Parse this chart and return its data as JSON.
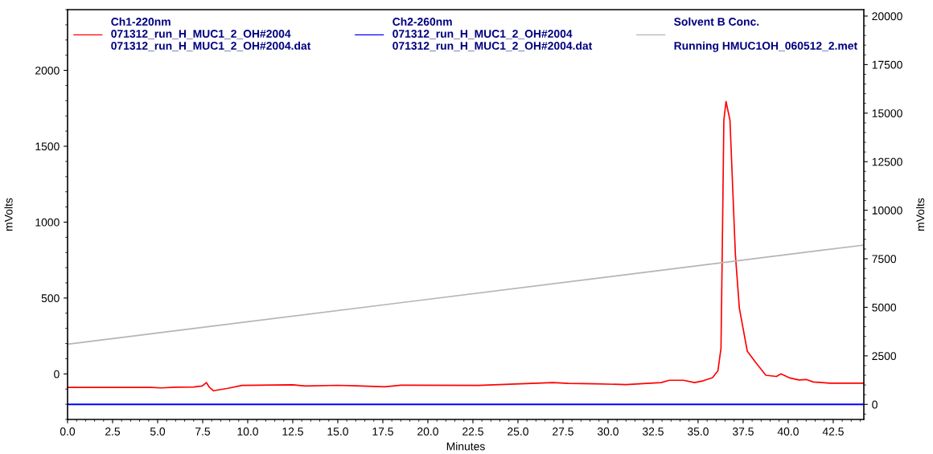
{
  "chart_data": {
    "type": "line",
    "xlabel": "Minutes",
    "ylabel": "mVolts",
    "y2label": "mVolts",
    "xlim": [
      0,
      44.2
    ],
    "xticks": [
      {
        "value": 0,
        "label": "0.0"
      },
      {
        "value": 2.5,
        "label": "2.5"
      },
      {
        "value": 5,
        "label": "5.0"
      },
      {
        "value": 7.5,
        "label": "7.5"
      },
      {
        "value": 10,
        "label": "10.0"
      },
      {
        "value": 12.5,
        "label": "12.5"
      },
      {
        "value": 15,
        "label": "15.0"
      },
      {
        "value": 17.5,
        "label": "17.5"
      },
      {
        "value": 20,
        "label": "20.0"
      },
      {
        "value": 22.5,
        "label": "22.5"
      },
      {
        "value": 25,
        "label": "25.0"
      },
      {
        "value": 27.5,
        "label": "27.5"
      },
      {
        "value": 30,
        "label": "30.0"
      },
      {
        "value": 32.5,
        "label": "32.5"
      },
      {
        "value": 35,
        "label": "35.0"
      },
      {
        "value": 37.5,
        "label": "37.5"
      },
      {
        "value": 40,
        "label": "40.0"
      },
      {
        "value": 42.5,
        "label": "42.5"
      }
    ],
    "ylim": [
      -300,
      2400
    ],
    "yticks": [
      0,
      500,
      1000,
      1500,
      2000
    ],
    "y2lim": [
      -775,
      20330
    ],
    "y2ticks": [
      0,
      2500,
      5000,
      7500,
      10000,
      12500,
      15000,
      17500,
      20000
    ],
    "grid": false,
    "legend": "top",
    "marker": "none",
    "line_style": "solid",
    "series": [
      {
        "name": "Ch1-220nm\n071312_run_H_MUC1_2_OH#2004\n071312_run_H_MUC1_2_OH#2004.dat",
        "color": "#ff0000",
        "x": [
          0,
          4.63,
          5.2,
          6.0,
          7.0,
          7.47,
          7.71,
          7.87,
          8.1,
          8.9,
          9.68,
          12.5,
          13.2,
          15.0,
          16.0,
          17.6,
          18.5,
          22.8,
          26.95,
          27.8,
          29.25,
          31.0,
          32.95,
          33.4,
          34.2,
          34.8,
          35.3,
          35.8,
          36.1,
          36.23,
          36.27,
          36.33,
          36.43,
          36.55,
          36.77,
          36.92,
          37.07,
          37.29,
          37.73,
          38.17,
          38.76,
          39.35,
          39.6,
          40.1,
          40.6,
          41.0,
          41.4,
          42.3,
          44.2
        ],
        "values": [
          -89,
          -89,
          -92,
          -88,
          -86,
          -80,
          -57,
          -88,
          -111,
          -95,
          -76,
          -72,
          -80,
          -75,
          -78,
          -85,
          -74,
          -76,
          -57,
          -62,
          -65,
          -70,
          -57,
          -42,
          -42,
          -57,
          -45,
          -25,
          20,
          133,
          167,
          700,
          1671,
          1795,
          1671,
          1230,
          787,
          434,
          150,
          80,
          -9,
          -17,
          0,
          -27,
          -40,
          -37,
          -53,
          -61,
          -61
        ]
      },
      {
        "name": "Ch2-260nm\n071312_run_H_MUC1_2_OH#2004\n071312_run_H_MUC1_2_OH#2004.dat",
        "color": "#0000ff",
        "axis": "y2",
        "x": [
          0,
          44.2
        ],
        "values": [
          0,
          0
        ]
      },
      {
        "name": "Solvent B Conc.\n\nRunning HMUC1OH_060512_2.met",
        "color": "#b4b4b4",
        "x": [
          0,
          44.2
        ],
        "values": [
          196,
          849
        ]
      }
    ]
  }
}
